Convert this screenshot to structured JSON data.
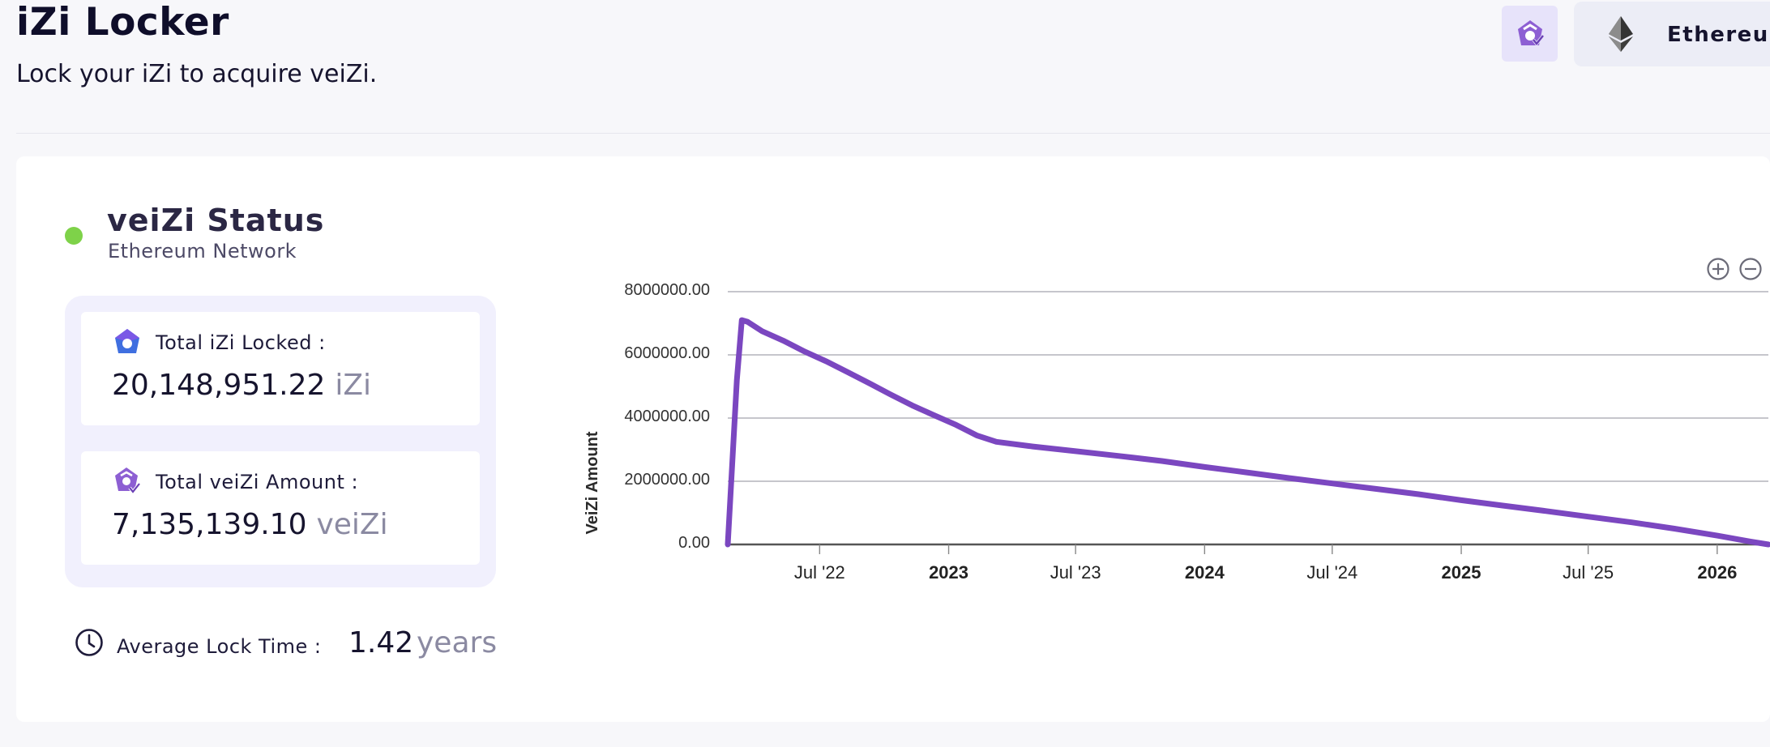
{
  "header": {
    "title": "iZi Locker",
    "subtitle": "Lock your iZi to acquire veiZi.",
    "network_button_label": "Ethereum"
  },
  "status": {
    "title": "veiZi Status",
    "network": "Ethereum Network",
    "indicator_color": "#7ed249"
  },
  "stats": {
    "total_locked": {
      "label": "Total iZi Locked :",
      "value": "20,148,951.22",
      "unit": "iZi",
      "icon": "izi-token-icon"
    },
    "total_veizi": {
      "label": "Total veiZi Amount :",
      "value": "7,135,139.10",
      "unit": "veiZi",
      "icon": "veizi-token-icon"
    }
  },
  "average_lock": {
    "label": "Average Lock Time :",
    "value": "1.42",
    "unit": "years"
  },
  "chart_data": {
    "type": "line",
    "ylabel": "VeiZi Amount",
    "xlabel": "",
    "ylim": [
      0,
      8000000
    ],
    "y_ticks": [
      "0.00",
      "2000000.00",
      "4000000.00",
      "6000000.00",
      "8000000.00"
    ],
    "x_tick_labels": [
      {
        "label": "Jul '22",
        "bold": false
      },
      {
        "label": "2023",
        "bold": true
      },
      {
        "label": "Jul '23",
        "bold": false
      },
      {
        "label": "2024",
        "bold": true
      },
      {
        "label": "Jul '24",
        "bold": false
      },
      {
        "label": "2025",
        "bold": true
      },
      {
        "label": "Jul '25",
        "bold": false
      },
      {
        "label": "2026",
        "bold": true
      }
    ],
    "xlim": [
      "2022-02-20",
      "2026-03-15"
    ],
    "x_tick_dates": [
      "2022-07-01",
      "2023-01-01",
      "2023-07-01",
      "2024-01-01",
      "2024-07-01",
      "2025-01-01",
      "2025-07-01",
      "2026-01-01"
    ],
    "grid": true,
    "series": [
      {
        "color": "#7b47c0",
        "points": [
          [
            "2022-02-20",
            0
          ],
          [
            "2022-03-05",
            5200000
          ],
          [
            "2022-03-12",
            7100000
          ],
          [
            "2022-03-20",
            7050000
          ],
          [
            "2022-04-10",
            6750000
          ],
          [
            "2022-05-10",
            6450000
          ],
          [
            "2022-06-10",
            6100000
          ],
          [
            "2022-07-10",
            5800000
          ],
          [
            "2022-08-10",
            5450000
          ],
          [
            "2022-09-10",
            5100000
          ],
          [
            "2022-10-10",
            4750000
          ],
          [
            "2022-11-10",
            4400000
          ],
          [
            "2022-12-10",
            4100000
          ],
          [
            "2023-01-10",
            3800000
          ],
          [
            "2023-02-10",
            3450000
          ],
          [
            "2023-03-10",
            3250000
          ],
          [
            "2023-05-01",
            3100000
          ],
          [
            "2023-07-01",
            2950000
          ],
          [
            "2023-09-01",
            2800000
          ],
          [
            "2023-11-01",
            2640000
          ],
          [
            "2024-01-01",
            2450000
          ],
          [
            "2024-03-01",
            2280000
          ],
          [
            "2024-05-01",
            2100000
          ],
          [
            "2024-07-01",
            1930000
          ],
          [
            "2024-09-01",
            1760000
          ],
          [
            "2024-11-01",
            1590000
          ],
          [
            "2025-01-01",
            1400000
          ],
          [
            "2025-03-01",
            1230000
          ],
          [
            "2025-05-01",
            1060000
          ],
          [
            "2025-07-01",
            880000
          ],
          [
            "2025-09-01",
            700000
          ],
          [
            "2025-11-01",
            500000
          ],
          [
            "2026-01-01",
            280000
          ],
          [
            "2026-02-15",
            100000
          ],
          [
            "2026-03-15",
            0
          ]
        ]
      }
    ]
  }
}
